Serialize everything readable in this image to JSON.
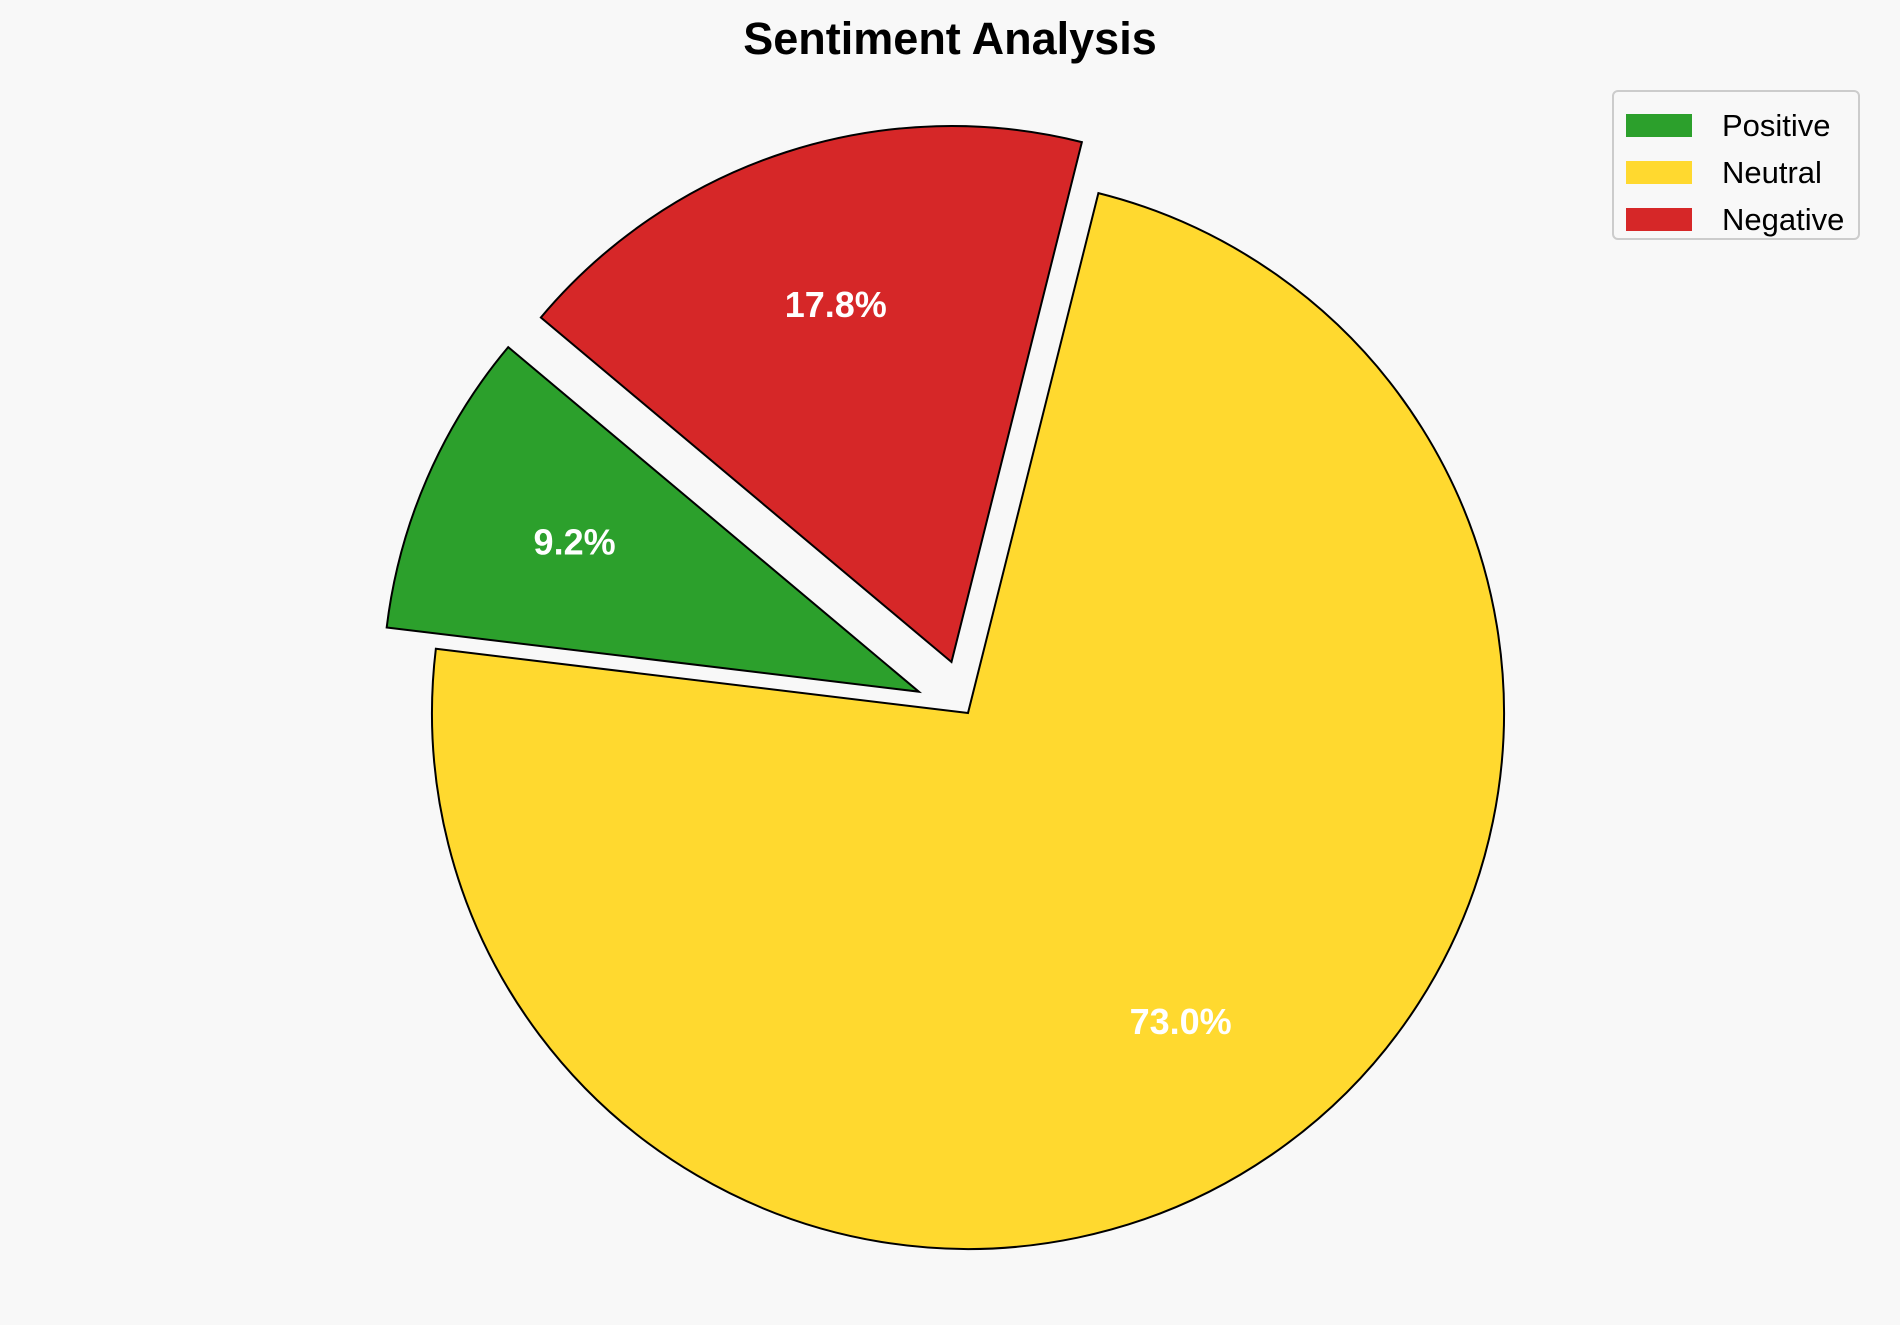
{
  "chart_data": {
    "type": "pie",
    "title": "Sentiment Analysis",
    "categories": [
      "Positive",
      "Neutral",
      "Negative"
    ],
    "values": [
      9.2,
      73.0,
      17.8
    ],
    "labels": [
      "9.2%",
      "73.0%",
      "17.8%"
    ],
    "colors": [
      "#2ca02c",
      "#ffd92f",
      "#d62728"
    ],
    "explode": [
      0.1,
      0,
      0.1
    ],
    "start_angle": 140,
    "legend_position": "top-right"
  }
}
